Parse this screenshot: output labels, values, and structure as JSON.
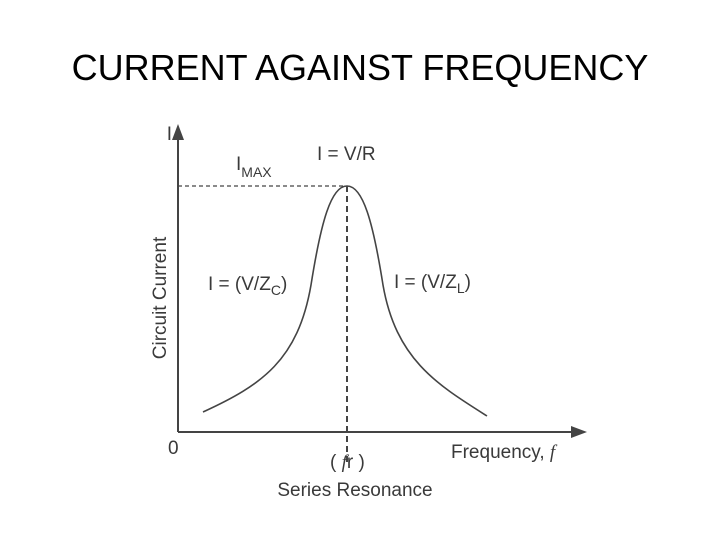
{
  "title": "CURRENT AGAINST FREQUENCY",
  "diagram": {
    "y_axis_symbol": "I",
    "y_axis_label": "Circuit Current",
    "origin": "0",
    "x_axis_label": {
      "text": "Frequency,",
      "symbol": "f"
    },
    "peak_label": "I = V/R",
    "i_max": {
      "main": "I",
      "sub": "MAX"
    },
    "left_label": {
      "before": "I = (V/Z",
      "sub": "C",
      "after": ")"
    },
    "right_label": {
      "before": "I = (V/Z",
      "sub": "L",
      "after": ")"
    },
    "resonance_marker": {
      "open": "(",
      "symbol": "f",
      "rest": "r )"
    },
    "resonance_caption": "Series Resonance"
  }
}
